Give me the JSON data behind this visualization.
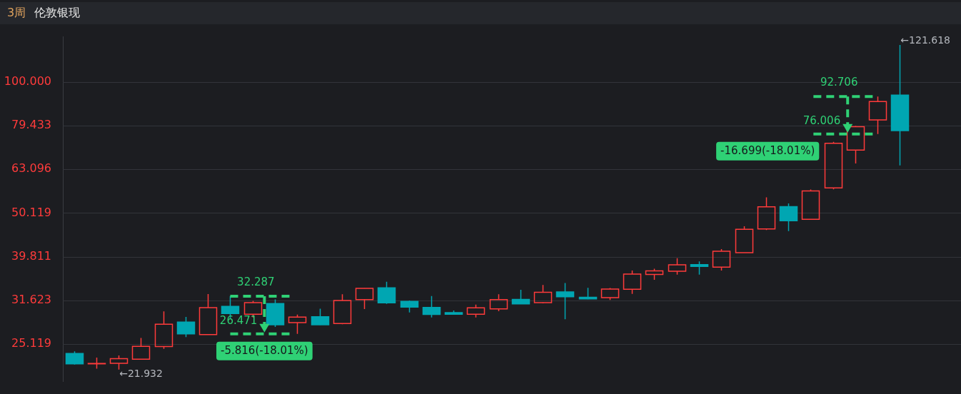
{
  "chart_data": {
    "type": "candlestick",
    "title": "伦敦银现",
    "subtitle": "3周",
    "categories": [
      null,
      null,
      null,
      null,
      null,
      null,
      null,
      null,
      null,
      null,
      null,
      null,
      null,
      null,
      null,
      null,
      null,
      null,
      null,
      null,
      null,
      null,
      null,
      null,
      null,
      null,
      null,
      null,
      null,
      null,
      null,
      null,
      null,
      null,
      null,
      null,
      null,
      null
    ],
    "ohlc": [
      [
        23.88,
        24.14,
        22.53,
        22.61
      ],
      [
        22.61,
        23.36,
        22.04,
        22.65
      ],
      [
        22.67,
        23.62,
        21.932,
        23.22
      ],
      [
        23.17,
        25.92,
        23.1,
        24.78
      ],
      [
        24.76,
        29.81,
        24.46,
        27.85
      ],
      [
        28.19,
        28.96,
        26.03,
        26.47
      ],
      [
        26.38,
        32.67,
        26.35,
        30.42
      ],
      [
        30.61,
        32.287,
        28.72,
        29.49
      ],
      [
        29.36,
        31.51,
        28.88,
        31.22
      ],
      [
        31.09,
        31.77,
        27.48,
        27.78
      ],
      [
        28.09,
        29.31,
        26.471,
        28.92
      ],
      [
        28.99,
        30.23,
        27.75,
        27.79
      ],
      [
        27.97,
        32.63,
        27.86,
        31.59
      ],
      [
        31.73,
        33.7,
        30.17,
        33.67
      ],
      [
        33.76,
        34.87,
        31.03,
        31.19
      ],
      [
        31.44,
        31.58,
        29.66,
        30.51
      ],
      [
        30.43,
        32.34,
        28.89,
        29.35
      ],
      [
        29.62,
        29.96,
        29.35,
        29.38
      ],
      [
        29.38,
        30.91,
        28.89,
        30.39
      ],
      [
        30.2,
        32.63,
        29.84,
        31.74
      ],
      [
        31.76,
        33.4,
        31.0,
        31.03
      ],
      [
        31.23,
        34.29,
        31.11,
        32.98
      ],
      [
        33.03,
        34.62,
        28.6,
        32.21
      ],
      [
        32.13,
        33.76,
        31.8,
        31.85
      ],
      [
        32.05,
        33.72,
        31.66,
        33.55
      ],
      [
        33.5,
        36.99,
        32.71,
        36.32
      ],
      [
        36.23,
        37.34,
        35.23,
        36.93
      ],
      [
        36.85,
        39.48,
        36.19,
        38.12
      ],
      [
        38.16,
        38.81,
        36.19,
        37.8
      ],
      [
        37.67,
        41.43,
        36.99,
        40.94
      ],
      [
        40.64,
        46.73,
        40.64,
        45.99
      ],
      [
        46.06,
        54.42,
        45.83,
        51.78
      ],
      [
        51.82,
        52.73,
        45.56,
        48.1
      ],
      [
        48.46,
        56.74,
        48.4,
        56.32
      ],
      [
        57.22,
        72.94,
        56.81,
        72.42
      ],
      [
        69.84,
        79.3,
        65.11,
        79.0
      ],
      [
        81.92,
        92.706,
        76.006,
        90.25
      ],
      [
        93.35,
        121.618,
        64.41,
        77.38
      ]
    ],
    "colors": [
      "#00a6b2",
      "#ff3b3b",
      "#ff3b3b",
      "#ff3b3b",
      "#ff3b3b",
      "#00a6b2",
      "#ff3b3b",
      "#00a6b2",
      "#ff3b3b",
      "#00a6b2",
      "#ff3b3b",
      "#00a6b2",
      "#ff3b3b",
      "#ff3b3b",
      "#00a6b2",
      "#00a6b2",
      "#00a6b2",
      "#00a6b2",
      "#ff3b3b",
      "#ff3b3b",
      "#00a6b2",
      "#ff3b3b",
      "#00a6b2",
      "#00a6b2",
      "#ff3b3b",
      "#ff3b3b",
      "#ff3b3b",
      "#ff3b3b",
      "#00a6b2",
      "#ff3b3b",
      "#ff3b3b",
      "#ff3b3b",
      "#00a6b2",
      "#ff3b3b",
      "#ff3b3b",
      "#ff3b3b",
      "#ff3b3b",
      "#00a6b2"
    ],
    "log": true,
    "ylim": [
      20.6,
      127
    ],
    "yticks": [
      25.119,
      31.623,
      39.811,
      50.119,
      63.096,
      79.433,
      {
        "value": 100,
        "label": "100.000"
      }
    ],
    "grid": "y",
    "annotations": [
      "32.287",
      "26.471",
      "-5.816(-18.01%)",
      "92.706",
      "76.006",
      "-16.699(-18.01%)",
      "←121.618",
      "←21.932"
    ]
  }
}
